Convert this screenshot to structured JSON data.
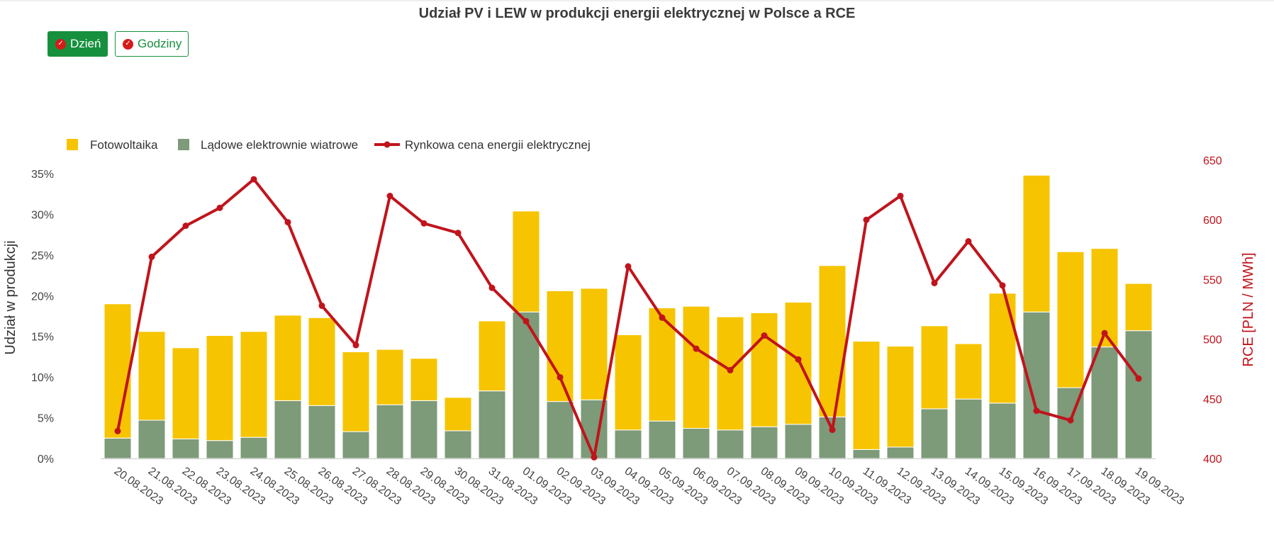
{
  "title": "Udział PV i LEW w produkcji energii elektrycznej w Polsce a RCE",
  "buttons": {
    "day_label": "Dzień",
    "hours_label": "Godziny",
    "check_icon": "check-circle-icon"
  },
  "colors": {
    "pv": "#f6c400",
    "wind": "#7d9a79",
    "price": "#c0141c",
    "button": "#17903e",
    "check": "#d61a1a"
  },
  "chart_data": {
    "type": "bar",
    "stacked": true,
    "title": "Udział PV i LEW w produkcji energii elektrycznej w Polsce a RCE",
    "categories": [
      "20.08.2023",
      "21.08.2023",
      "22.08.2023",
      "23.08.2023",
      "24.08.2023",
      "25.08.2023",
      "26.08.2023",
      "27.08.2023",
      "28.08.2023",
      "29.08.2023",
      "30.08.2023",
      "31.08.2023",
      "01.09.2023",
      "02.09.2023",
      "03.09.2023",
      "04.09.2023",
      "05.09.2023",
      "06.09.2023",
      "07.09.2023",
      "08.09.2023",
      "09.09.2023",
      "10.09.2023",
      "11.09.2023",
      "12.09.2023",
      "13.09.2023",
      "14.09.2023",
      "15.09.2023",
      "16.09.2023",
      "17.09.2023",
      "18.09.2023",
      "19.09.2023"
    ],
    "series": [
      {
        "name": "Lądowe elektrownie wiatrowe",
        "kind": "bar",
        "axis": "left",
        "color": "#7d9a79",
        "values": [
          2.5,
          4.7,
          2.4,
          2.2,
          2.6,
          7.1,
          6.5,
          3.3,
          6.6,
          7.1,
          3.4,
          8.3,
          18.0,
          7.0,
          7.2,
          3.5,
          4.6,
          3.7,
          3.5,
          3.9,
          4.2,
          5.1,
          1.1,
          1.4,
          6.1,
          7.3,
          6.8,
          18.0,
          8.7,
          13.7,
          15.7
        ]
      },
      {
        "name": "Fotowoltaika",
        "kind": "bar",
        "axis": "left",
        "color": "#f6c400",
        "values": [
          16.5,
          10.9,
          11.2,
          12.9,
          13.0,
          10.5,
          10.8,
          9.8,
          6.8,
          5.2,
          4.1,
          8.6,
          12.4,
          13.6,
          13.7,
          11.7,
          13.9,
          15.0,
          13.9,
          14.0,
          15.0,
          18.6,
          13.3,
          12.4,
          10.2,
          6.8,
          13.5,
          16.8,
          16.7,
          12.1,
          5.8
        ]
      },
      {
        "name": "Rynkowa cena energii elektrycznej",
        "kind": "line",
        "axis": "right",
        "color": "#c0141c",
        "values": [
          423,
          569,
          595,
          610,
          634,
          598,
          528,
          495,
          620,
          597,
          589,
          543,
          515,
          468,
          401,
          561,
          518,
          492,
          474,
          503,
          483,
          424,
          600,
          620,
          547,
          582,
          545,
          440,
          432,
          505,
          467
        ]
      }
    ],
    "ylabel": "Udział w produkcji",
    "ylabel_right": "RCE [PLN / MWh]",
    "ylim": [
      0,
      35
    ],
    "ylim_right": [
      400,
      650
    ],
    "yticks": [
      "0%",
      "5%",
      "10%",
      "15%",
      "20%",
      "25%",
      "30%",
      "35%"
    ],
    "yticks_right": [
      "400",
      "450",
      "500",
      "550",
      "600",
      "650"
    ],
    "legend": [
      "Fotowoltaika",
      "Lądowe elektrownie wiatrowe",
      "Rynkowa cena energii elektrycznej"
    ],
    "legend_position": "top-left",
    "grid": false
  }
}
